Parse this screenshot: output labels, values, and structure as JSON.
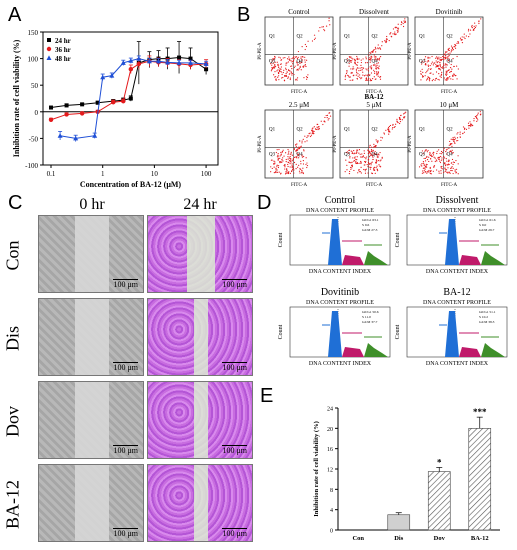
{
  "panels": {
    "A": "A",
    "B": "B",
    "C": "C",
    "D": "D",
    "E": "E"
  },
  "chart_data": [
    {
      "type": "line",
      "xlabel": "Concentration of BA-12 (μM)",
      "ylabel": "Inhibition rate of cell viability (%)",
      "xscale": "log",
      "xlim": [
        0.07,
        170
      ],
      "ylim": [
        -100,
        150
      ],
      "x_ticks": [
        0.1,
        1,
        10,
        100
      ],
      "x_tick_labels": [
        "0.1",
        "1",
        "10",
        "100"
      ],
      "y_ticks": [
        -100,
        -50,
        0,
        50,
        100,
        150
      ],
      "y_tick_labels": [
        "-100",
        "-50",
        "0",
        "50",
        "100",
        "150"
      ],
      "legend_position": "top-left",
      "series": [
        {
          "name": "24 hr",
          "color": "#000000",
          "marker": "square",
          "x": [
            0.1,
            0.2,
            0.4,
            0.8,
            1.6,
            2.5,
            3.5,
            5,
            8,
            12,
            18,
            30,
            50,
            100
          ],
          "y": [
            8,
            12,
            14,
            17,
            20,
            22,
            25,
            92,
            98,
            100,
            100,
            102,
            100,
            80
          ],
          "err": [
            2,
            3,
            2,
            3,
            3,
            4,
            5,
            40,
            15,
            15,
            20,
            30,
            20,
            10
          ]
        },
        {
          "name": "36 hr",
          "color": "#e41a1c",
          "marker": "circle",
          "x": [
            0.1,
            0.2,
            0.4,
            0.8,
            1.6,
            2.5,
            3.5,
            5,
            8,
            12,
            18,
            30,
            50,
            100
          ],
          "y": [
            -15,
            -5,
            -3,
            0,
            18,
            20,
            80,
            90,
            95,
            93,
            92,
            90,
            88,
            90
          ],
          "err": [
            3,
            3,
            3,
            3,
            4,
            4,
            8,
            10,
            10,
            8,
            8,
            8,
            8,
            8
          ]
        },
        {
          "name": "48 hr",
          "color": "#1f4fd6",
          "marker": "triangle",
          "x": [
            0.15,
            0.3,
            0.7,
            1.0,
            1.5,
            2.5,
            3.5,
            5,
            8,
            12,
            18,
            30,
            50,
            100
          ],
          "y": [
            -45,
            -50,
            -45,
            65,
            68,
            92,
            96,
            100,
            95,
            95,
            93,
            92,
            92,
            90
          ],
          "err": [
            8,
            6,
            5,
            6,
            5,
            5,
            5,
            5,
            5,
            5,
            5,
            5,
            5,
            5
          ]
        }
      ]
    },
    {
      "type": "bar",
      "ylabel": "Inhibition rate of cell viability (%)",
      "categories": [
        "Con",
        "Dis",
        "Dov",
        "BA-12"
      ],
      "values": [
        0,
        3,
        11.5,
        20
      ],
      "err": [
        0,
        0.4,
        0.8,
        2.2
      ],
      "significance": [
        "",
        "",
        "*",
        "***"
      ],
      "ylim": [
        0,
        24
      ],
      "y_ticks": [
        0,
        4,
        8,
        12,
        16,
        20,
        24
      ],
      "y_tick_labels": [
        "0",
        "4",
        "8",
        "12",
        "16",
        "20",
        "24"
      ],
      "bar_colors": [
        "#ffffff",
        "#d0d0d0",
        "#ffffff",
        "#e8e8e8"
      ]
    }
  ],
  "flow_b": {
    "titles": [
      "Control",
      "Dissolvent",
      "Dovitinib",
      "2.5 μM",
      "5 μM",
      "10 μM"
    ],
    "mid_label": "BA-12",
    "x_axis": "FITC-A",
    "y_axis": "PI-PE-A",
    "quadrants": [
      "Q1",
      "Q2",
      "Q3",
      "Q4"
    ],
    "dot_color": "#e41a1c"
  },
  "scratch_c": {
    "col_headers": [
      "0 hr",
      "24 hr"
    ],
    "row_labels": [
      "Con",
      "Dis",
      "Dov",
      "BA-12"
    ],
    "scale_bar": "100 μm"
  },
  "cycle_d": {
    "titles": [
      "Control",
      "Dissolvent",
      "Dovitinib",
      "BA-12"
    ],
    "subtitle": "DNA CONTENT PROFILE",
    "x_axis": "DNA CONTENT INDEX",
    "y_axis": "Count",
    "stats": [
      [
        "G0/G1 63.1",
        "S 9.6",
        "G2/M 27.3"
      ],
      [
        "G0/G1 61.6",
        "S 9.0",
        "G2/M 29.7"
      ],
      [
        "G0/G1 50.6",
        "S 11.0",
        "G2/M 37.7"
      ],
      [
        "G0/G1 51.1",
        "S 10.2",
        "G2/M 38.3"
      ]
    ],
    "colors": {
      "g1": "#1f6fd6",
      "s": "#c01a6a",
      "g2": "#3f8f2a"
    }
  }
}
